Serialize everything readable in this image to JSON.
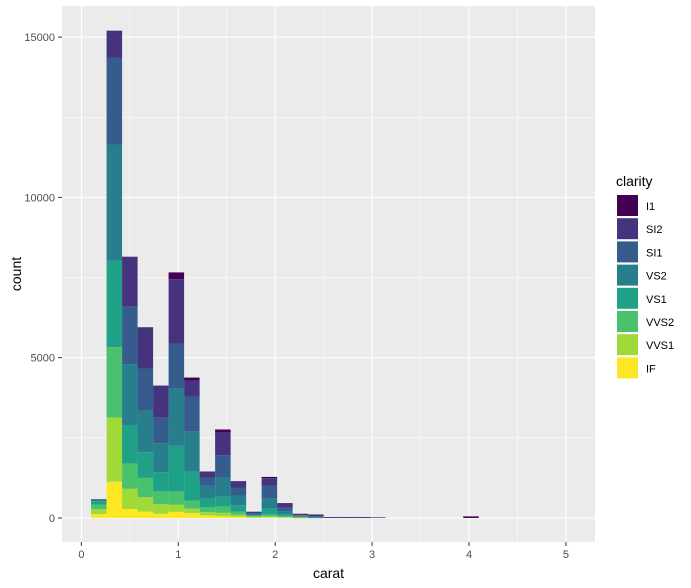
{
  "chart_data": {
    "type": "bar",
    "stacked": true,
    "xlabel": "carat",
    "ylabel": "count",
    "xlim": [
      -0.2,
      5.3
    ],
    "ylim": [
      -750,
      15970
    ],
    "x_ticks": [
      0,
      1,
      2,
      3,
      4,
      5
    ],
    "y_ticks": [
      0,
      5000,
      10000,
      15000
    ],
    "bin_width": 0.16,
    "legend": {
      "title": "clarity",
      "position": "right",
      "entries": [
        "I1",
        "SI2",
        "SI1",
        "VS2",
        "VS1",
        "VVS2",
        "VVS1",
        "IF"
      ]
    },
    "colors": {
      "I1": "#440154",
      "SI2": "#46337e",
      "SI1": "#365c8d",
      "VS2": "#277f8e",
      "VS1": "#1fa187",
      "VVS2": "#4ac16d",
      "VVS1": "#a0da39",
      "IF": "#fde725",
      "panel": "#ebebeb",
      "grid": "#ffffff"
    },
    "bin_centers": [
      0.18,
      0.34,
      0.5,
      0.66,
      0.82,
      0.98,
      1.14,
      1.3,
      1.46,
      1.62,
      1.78,
      1.94,
      2.1,
      2.26,
      2.42,
      2.58,
      2.74,
      2.9,
      3.06,
      4.02
    ],
    "stack_order": [
      "IF",
      "VVS1",
      "VVS2",
      "VS1",
      "VS2",
      "SI1",
      "SI2",
      "I1"
    ],
    "series": [
      {
        "name": "IF",
        "values": [
          120,
          1130,
          280,
          200,
          130,
          190,
          150,
          80,
          60,
          40,
          15,
          20,
          10,
          5,
          0,
          0,
          0,
          0,
          0,
          0
        ]
      },
      {
        "name": "VVS1",
        "values": [
          150,
          2000,
          630,
          450,
          300,
          220,
          140,
          100,
          100,
          60,
          20,
          30,
          15,
          5,
          0,
          0,
          0,
          0,
          0,
          0
        ]
      },
      {
        "name": "VVS2",
        "values": [
          150,
          2200,
          790,
          600,
          400,
          410,
          250,
          160,
          200,
          100,
          20,
          60,
          30,
          10,
          0,
          0,
          0,
          0,
          0,
          0
        ]
      },
      {
        "name": "VS1",
        "values": [
          100,
          2700,
          1200,
          800,
          600,
          1430,
          900,
          260,
          300,
          200,
          30,
          200,
          60,
          20,
          10,
          0,
          0,
          0,
          0,
          0
        ]
      },
      {
        "name": "VS2",
        "values": [
          50,
          3620,
          1900,
          1300,
          900,
          1780,
          1250,
          400,
          600,
          300,
          40,
          300,
          100,
          30,
          20,
          0,
          0,
          0,
          0,
          0
        ]
      },
      {
        "name": "SI1",
        "values": [
          20,
          2700,
          1800,
          1300,
          800,
          1400,
          1100,
          250,
          700,
          250,
          30,
          400,
          100,
          20,
          20,
          0,
          0,
          0,
          0,
          0
        ]
      },
      {
        "name": "SI2",
        "values": [
          0,
          850,
          1550,
          1300,
          1000,
          2020,
          500,
          200,
          700,
          200,
          40,
          230,
          150,
          20,
          60,
          30,
          30,
          30,
          20,
          0
        ]
      },
      {
        "name": "I1",
        "values": [
          0,
          0,
          0,
          0,
          0,
          210,
          90,
          0,
          100,
          0,
          0,
          40,
          0,
          20,
          0,
          0,
          0,
          0,
          0,
          50
        ]
      }
    ]
  }
}
